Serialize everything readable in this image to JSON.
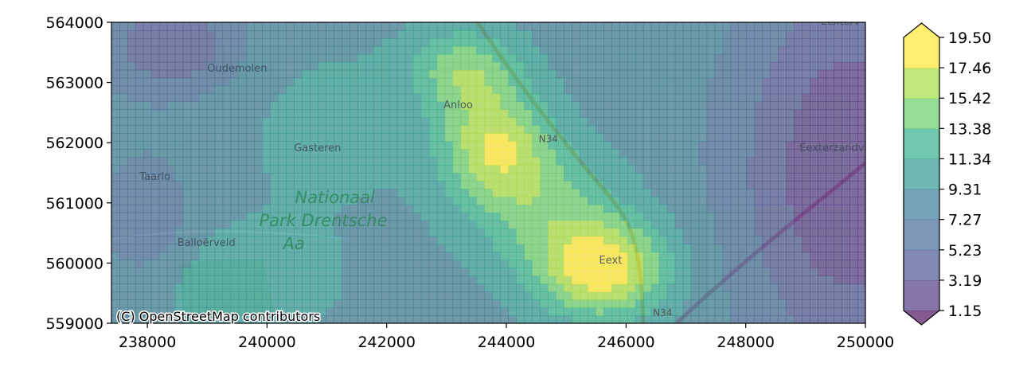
{
  "chart_data": {
    "type": "heatmap",
    "title": "",
    "xlabel": "",
    "ylabel": "",
    "xlim": [
      237400,
      250000
    ],
    "ylim": [
      559000,
      564000
    ],
    "x_ticks": [
      "238000",
      "240000",
      "242000",
      "244000",
      "246000",
      "248000",
      "250000"
    ],
    "x_tick_values": [
      238000,
      240000,
      242000,
      244000,
      246000,
      248000,
      250000
    ],
    "y_ticks": [
      "559000",
      "560000",
      "561000",
      "562000",
      "563000",
      "564000"
    ],
    "y_tick_values": [
      559000,
      560000,
      561000,
      562000,
      563000,
      564000
    ],
    "colorbar": {
      "levels": [
        "1.15",
        "3.19",
        "5.23",
        "7.27",
        "9.31",
        "11.34",
        "13.38",
        "15.42",
        "17.46",
        "19.50"
      ],
      "level_values": [
        1.15,
        3.19,
        5.23,
        7.27,
        9.31,
        11.34,
        13.38,
        15.42,
        17.46,
        19.5
      ],
      "colors": [
        "#472d7b",
        "#3f4a89",
        "#355f8d",
        "#2c728e",
        "#21918c",
        "#25ab82",
        "#5ec962",
        "#a2da37",
        "#fde725"
      ],
      "extend": "both",
      "extend_min_color": "#440154",
      "extend_max_color": "#fde725"
    },
    "alpha": 0.65,
    "basemap": {
      "attribution": "(C) OpenStreetMap contributors",
      "place_labels": [
        {
          "text": "Oudemolen",
          "x": 239000,
          "y": 563180
        },
        {
          "text": "Anloo",
          "x": 242950,
          "y": 562570
        },
        {
          "text": "Gasteren",
          "x": 240450,
          "y": 561860
        },
        {
          "text": "Taarlo",
          "x": 237870,
          "y": 561380
        },
        {
          "text": "Balloërveld",
          "x": 238500,
          "y": 560280
        },
        {
          "text": "Eext",
          "x": 245550,
          "y": 559990
        },
        {
          "text": "Eexterzandvoort",
          "x": 248900,
          "y": 561860
        },
        {
          "text": "Eexterv",
          "x": 249250,
          "y": 563960
        }
      ],
      "park_label": [
        "Nationaal",
        "Park Drentsche",
        "Aa"
      ],
      "park_label_pos": {
        "x": 240600,
        "y": 561000
      },
      "road_labels": [
        {
          "text": "N34",
          "x": 244540,
          "y": 562010
        },
        {
          "text": "N34",
          "x": 246450,
          "y": 559120
        }
      ]
    },
    "grid": false,
    "legend": "colorbar-right"
  }
}
